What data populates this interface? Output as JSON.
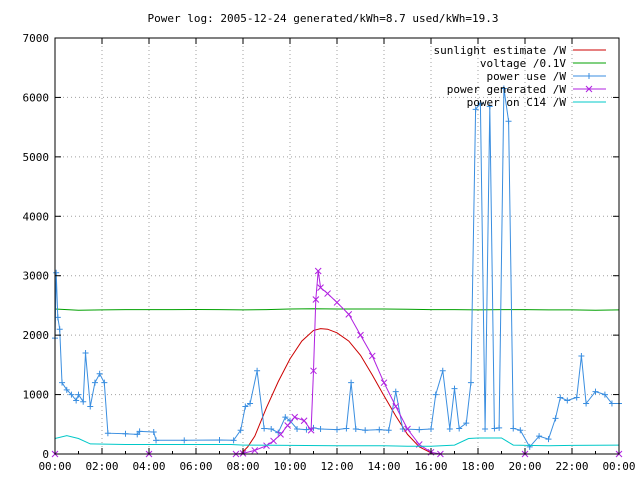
{
  "chart_data": {
    "type": "line",
    "title": "Power log: 2005-12-24 generated/kWh=8.7 used/kWh=19.3",
    "xlabel": "",
    "ylabel": "",
    "x_range_hours": [
      0,
      24
    ],
    "ylim": [
      0,
      7000
    ],
    "x_tick_labels": [
      "00:00",
      "02:00",
      "04:00",
      "06:00",
      "08:00",
      "10:00",
      "12:00",
      "14:00",
      "16:00",
      "18:00",
      "20:00",
      "22:00",
      "00:00"
    ],
    "y_ticks": [
      0,
      1000,
      2000,
      3000,
      4000,
      5000,
      6000,
      7000
    ],
    "grid": true,
    "legend_position": "top-right",
    "series": [
      {
        "name": "sunlight estimate /W",
        "color": "#cc0000",
        "style": "line",
        "points": [
          [
            7.9,
            0
          ],
          [
            8.2,
            120
          ],
          [
            8.5,
            300
          ],
          [
            9.0,
            780
          ],
          [
            9.5,
            1220
          ],
          [
            10.0,
            1600
          ],
          [
            10.5,
            1900
          ],
          [
            11.0,
            2080
          ],
          [
            11.3,
            2110
          ],
          [
            11.6,
            2100
          ],
          [
            12.0,
            2040
          ],
          [
            12.5,
            1900
          ],
          [
            13.0,
            1660
          ],
          [
            13.5,
            1330
          ],
          [
            14.0,
            980
          ],
          [
            14.5,
            640
          ],
          [
            15.0,
            330
          ],
          [
            15.5,
            120
          ],
          [
            16.1,
            0
          ]
        ]
      },
      {
        "name": "voltage /0.1V",
        "color": "#00a000",
        "style": "line",
        "points": [
          [
            0,
            2440
          ],
          [
            1,
            2420
          ],
          [
            2,
            2425
          ],
          [
            3,
            2430
          ],
          [
            4,
            2430
          ],
          [
            5,
            2430
          ],
          [
            6,
            2432
          ],
          [
            7,
            2430
          ],
          [
            8,
            2425
          ],
          [
            9,
            2430
          ],
          [
            10,
            2440
          ],
          [
            11,
            2445
          ],
          [
            12,
            2440
          ],
          [
            13,
            2440
          ],
          [
            14,
            2440
          ],
          [
            15,
            2435
          ],
          [
            16,
            2430
          ],
          [
            17,
            2430
          ],
          [
            18,
            2425
          ],
          [
            19,
            2430
          ],
          [
            20,
            2430
          ],
          [
            21,
            2425
          ],
          [
            22,
            2425
          ],
          [
            23,
            2420
          ],
          [
            24,
            2425
          ]
        ]
      },
      {
        "name": "power use /W",
        "color": "#3a8ee0",
        "style": "linespoints",
        "points": [
          [
            0,
            1950
          ],
          [
            0.05,
            3050
          ],
          [
            0.12,
            2300
          ],
          [
            0.2,
            2100
          ],
          [
            0.3,
            1200
          ],
          [
            0.5,
            1080
          ],
          [
            0.7,
            1000
          ],
          [
            0.9,
            900
          ],
          [
            1.0,
            1000
          ],
          [
            1.2,
            880
          ],
          [
            1.3,
            1700
          ],
          [
            1.5,
            800
          ],
          [
            1.7,
            1200
          ],
          [
            1.9,
            1350
          ],
          [
            2.1,
            1200
          ],
          [
            2.25,
            350
          ],
          [
            3.0,
            340
          ],
          [
            3.5,
            330
          ],
          [
            3.6,
            380
          ],
          [
            4.2,
            370
          ],
          [
            4.3,
            230
          ],
          [
            5.5,
            230
          ],
          [
            7.0,
            235
          ],
          [
            7.6,
            230
          ],
          [
            7.9,
            400
          ],
          [
            8.1,
            800
          ],
          [
            8.3,
            850
          ],
          [
            8.6,
            1400
          ],
          [
            8.9,
            430
          ],
          [
            9.2,
            420
          ],
          [
            9.5,
            360
          ],
          [
            9.8,
            620
          ],
          [
            10.0,
            560
          ],
          [
            10.3,
            420
          ],
          [
            10.7,
            410
          ],
          [
            11.0,
            440
          ],
          [
            11.3,
            420
          ],
          [
            12.0,
            410
          ],
          [
            12.4,
            430
          ],
          [
            12.6,
            1200
          ],
          [
            12.8,
            420
          ],
          [
            13.2,
            400
          ],
          [
            13.8,
            410
          ],
          [
            14.2,
            400
          ],
          [
            14.5,
            1050
          ],
          [
            14.8,
            420
          ],
          [
            15.5,
            410
          ],
          [
            16.0,
            420
          ],
          [
            16.2,
            1000
          ],
          [
            16.5,
            1400
          ],
          [
            16.8,
            420
          ],
          [
            17.0,
            1100
          ],
          [
            17.2,
            430
          ],
          [
            17.5,
            520
          ],
          [
            17.7,
            1200
          ],
          [
            17.9,
            5800
          ],
          [
            18.1,
            5900
          ],
          [
            18.3,
            420
          ],
          [
            18.5,
            5850
          ],
          [
            18.7,
            430
          ],
          [
            18.9,
            440
          ],
          [
            19.1,
            6150
          ],
          [
            19.3,
            5600
          ],
          [
            19.5,
            430
          ],
          [
            19.8,
            400
          ],
          [
            20.2,
            120
          ],
          [
            20.6,
            300
          ],
          [
            21.0,
            250
          ],
          [
            21.3,
            600
          ],
          [
            21.5,
            950
          ],
          [
            21.8,
            900
          ],
          [
            22.2,
            950
          ],
          [
            22.4,
            1650
          ],
          [
            22.6,
            850
          ],
          [
            23.0,
            1050
          ],
          [
            23.4,
            1000
          ],
          [
            23.7,
            850
          ],
          [
            24.0,
            850
          ]
        ]
      },
      {
        "name": "power generated /W",
        "color": "#b020e0",
        "style": "linespoints",
        "points": [
          [
            0,
            0
          ],
          [
            4,
            0
          ],
          [
            7.7,
            0
          ],
          [
            8.0,
            10
          ],
          [
            8.5,
            60
          ],
          [
            9.0,
            140
          ],
          [
            9.3,
            220
          ],
          [
            9.6,
            330
          ],
          [
            9.9,
            480
          ],
          [
            10.2,
            620
          ],
          [
            10.6,
            560
          ],
          [
            10.9,
            400
          ],
          [
            11.0,
            1400
          ],
          [
            11.1,
            2600
          ],
          [
            11.2,
            3080
          ],
          [
            11.3,
            2800
          ],
          [
            11.6,
            2700
          ],
          [
            12.0,
            2550
          ],
          [
            12.5,
            2350
          ],
          [
            13.0,
            2000
          ],
          [
            13.5,
            1650
          ],
          [
            14.0,
            1200
          ],
          [
            14.5,
            800
          ],
          [
            15.0,
            420
          ],
          [
            15.5,
            160
          ],
          [
            16.0,
            30
          ],
          [
            16.4,
            0
          ],
          [
            20,
            0
          ],
          [
            24,
            0
          ]
        ]
      },
      {
        "name": "power on C14 /W",
        "color": "#00c8c8",
        "style": "line",
        "points": [
          [
            0,
            260
          ],
          [
            0.5,
            310
          ],
          [
            1.0,
            260
          ],
          [
            1.5,
            170
          ],
          [
            3.0,
            160
          ],
          [
            5.0,
            160
          ],
          [
            7.5,
            160
          ],
          [
            8.0,
            150
          ],
          [
            10.0,
            145
          ],
          [
            12.0,
            140
          ],
          [
            14.0,
            140
          ],
          [
            15.0,
            130
          ],
          [
            16.0,
            130
          ],
          [
            17.0,
            150
          ],
          [
            17.6,
            260
          ],
          [
            18.0,
            270
          ],
          [
            19.0,
            270
          ],
          [
            19.5,
            150
          ],
          [
            21.0,
            140
          ],
          [
            22.0,
            145
          ],
          [
            24.0,
            150
          ]
        ]
      }
    ]
  }
}
